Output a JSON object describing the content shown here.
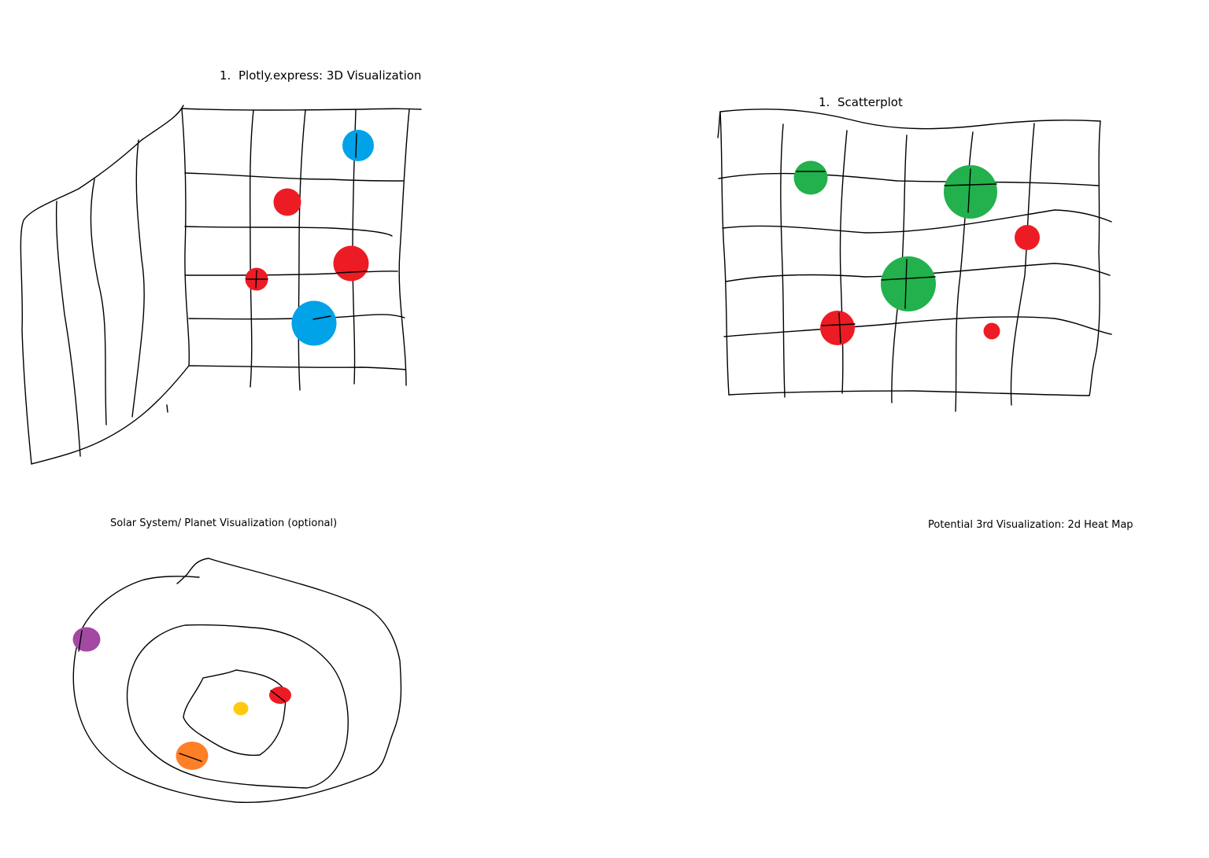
{
  "sketch1": {
    "number": "1.",
    "title": "Plotly.express: 3D Visualization",
    "points": [
      {
        "color": "#00A2E8",
        "size": "medium"
      },
      {
        "color": "#ED1C24",
        "size": "medium"
      },
      {
        "color": "#ED1C24",
        "size": "large"
      },
      {
        "color": "#ED1C24",
        "size": "small"
      },
      {
        "color": "#00A2E8",
        "size": "large"
      }
    ]
  },
  "sketch2": {
    "number": "1.",
    "title": "Scatterplot",
    "points": [
      {
        "color": "#22B14C",
        "size": "medium"
      },
      {
        "color": "#22B14C",
        "size": "large"
      },
      {
        "color": "#ED1C24",
        "size": "small"
      },
      {
        "color": "#22B14C",
        "size": "large"
      },
      {
        "color": "#ED1C24",
        "size": "medium"
      },
      {
        "color": "#ED1C24",
        "size": "small"
      }
    ]
  },
  "sketch3": {
    "title": "Solar System/ Planet Visualization (optional)",
    "sun_color": "#FFC90E",
    "planets": [
      {
        "color": "#ED1C24"
      },
      {
        "color": "#FF7F27"
      },
      {
        "color": "#A349A4"
      }
    ]
  },
  "sketch4": {
    "title": "Potential 3rd Visualization: 2d Heat Map"
  }
}
